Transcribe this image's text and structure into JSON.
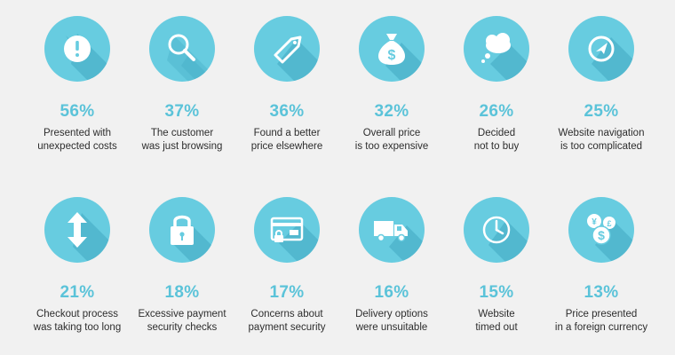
{
  "colors": {
    "background": "#f1f1f1",
    "circle": "#67cce0",
    "circle_shadow": "#52b8cf",
    "percent_text": "#5bc3d9",
    "label_text": "#2d2d2d",
    "icon": "#ffffff"
  },
  "items": [
    {
      "icon": "exclamation-icon",
      "percent": "56%",
      "line1": "Presented with",
      "line2": "unexpected costs"
    },
    {
      "icon": "magnifier-icon",
      "percent": "37%",
      "line1": "The customer",
      "line2": "was just browsing"
    },
    {
      "icon": "price-tag-icon",
      "percent": "36%",
      "line1": "Found a better",
      "line2": "price elsewhere"
    },
    {
      "icon": "money-bag-icon",
      "percent": "32%",
      "line1": "Overall price",
      "line2": "is too expensive"
    },
    {
      "icon": "thought-cloud-icon",
      "percent": "26%",
      "line1": "Decided",
      "line2": "not to buy"
    },
    {
      "icon": "compass-icon",
      "percent": "25%",
      "line1": "Website navigation",
      "line2": "is too complicated"
    },
    {
      "icon": "vertical-arrows-icon",
      "percent": "21%",
      "line1": "Checkout process",
      "line2": "was taking too long"
    },
    {
      "icon": "padlock-icon",
      "percent": "18%",
      "line1": "Excessive payment",
      "line2": "security checks"
    },
    {
      "icon": "card-lock-icon",
      "percent": "17%",
      "line1": "Concerns about",
      "line2": "payment security"
    },
    {
      "icon": "delivery-truck-icon",
      "percent": "16%",
      "line1": "Delivery options",
      "line2": "were unsuitable"
    },
    {
      "icon": "clock-icon",
      "percent": "15%",
      "line1": "Website",
      "line2": "timed out"
    },
    {
      "icon": "currency-coins-icon",
      "percent": "13%",
      "line1": "Price presented",
      "line2": "in a foreign currency"
    }
  ]
}
